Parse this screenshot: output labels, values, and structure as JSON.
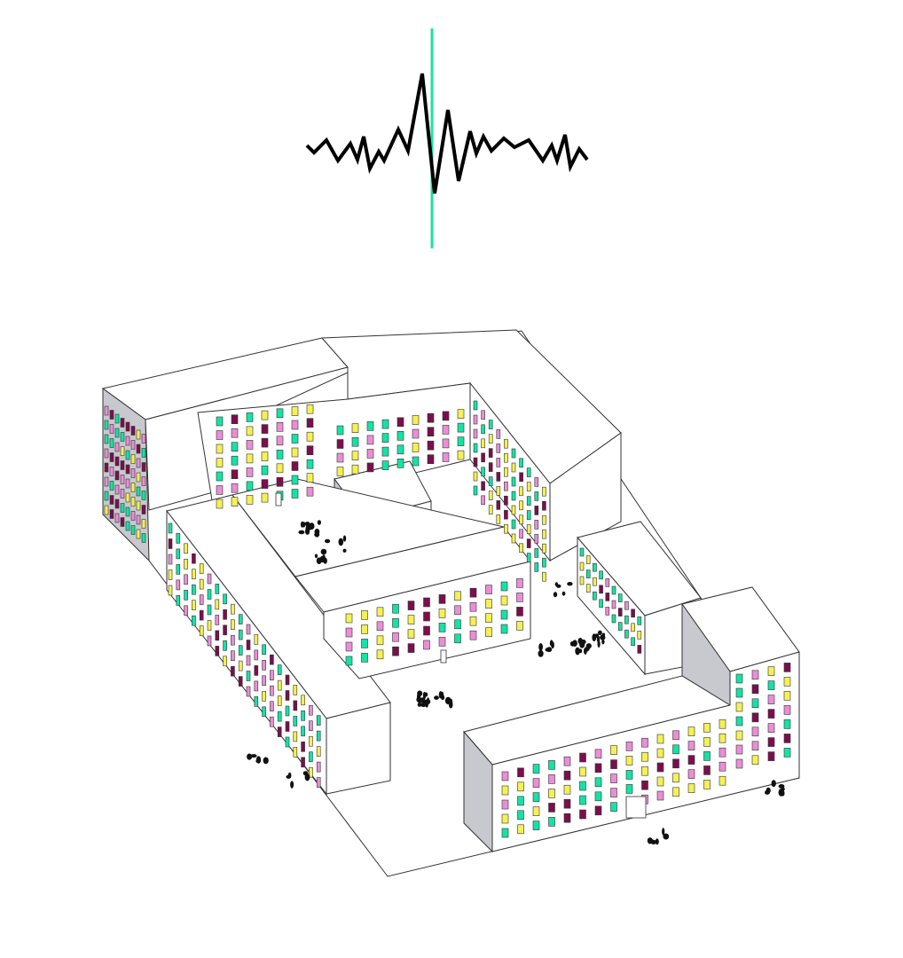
{
  "diagram": {
    "signal_wave": {
      "stroke_color": "#000000",
      "marker_color": "#1de3a0"
    },
    "window_palette": [
      "#f5f055",
      "#14e3a5",
      "#ea8ed6",
      "#7a0f4c"
    ],
    "building_colors": {
      "roof": "#ffffff",
      "lit_facade": "#ffffff",
      "shadow_facade": "#c8c9cf",
      "edge": "#333333"
    },
    "people_groups": 12
  }
}
